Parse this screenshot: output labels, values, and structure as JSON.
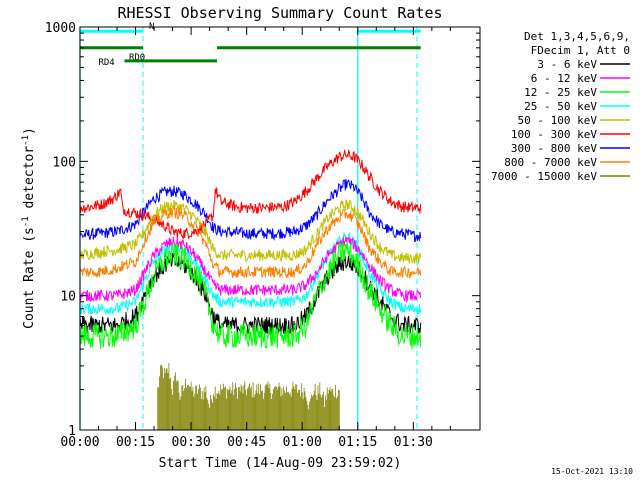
{
  "chart_data": {
    "type": "line",
    "title": "RHESSI Observing Summary Count Rates",
    "xlabel": "Start Time (14-Aug-09 23:59:02)",
    "ylabel": "Count Rate (s^-1 detector^-1)",
    "yscale": "log",
    "ylim": [
      1,
      1000
    ],
    "xlim": [
      0,
      108
    ],
    "x_unit": "minutes from 00:00",
    "x_ticks": [
      {
        "at": 0,
        "label": "00:00"
      },
      {
        "at": 15,
        "label": "00:15"
      },
      {
        "at": 30,
        "label": "00:30"
      },
      {
        "at": 45,
        "label": "00:45"
      },
      {
        "at": 60,
        "label": "01:00"
      },
      {
        "at": 75,
        "label": "01:15"
      },
      {
        "at": 90,
        "label": "01:30"
      }
    ],
    "y_ticks": [
      {
        "at": 1,
        "label": "1"
      },
      {
        "at": 10,
        "label": "10"
      },
      {
        "at": 100,
        "label": "100"
      },
      {
        "at": 1000,
        "label": "1000"
      }
    ],
    "grid": false,
    "legend_position": "right",
    "legend_header": [
      "Det 1,3,4,5,6,9,",
      "FDecim 1, Att 0"
    ],
    "footer_timestamp": "15-Oct-2021 13:10",
    "day_night_boundaries": {
      "color": "#00ffff",
      "solid": [
        0,
        75
      ],
      "dashed": [
        17,
        91
      ]
    },
    "flags": [
      {
        "name": "N",
        "color": "#00ffff",
        "y": 930,
        "segments": [
          [
            0,
            17
          ],
          [
            75,
            92
          ]
        ]
      },
      {
        "name": "RD0",
        "color": "#008000",
        "y": 700,
        "segments": [
          [
            0,
            17
          ],
          [
            37,
            92
          ]
        ]
      },
      {
        "name": "RD4",
        "color": "#008000",
        "y": 560,
        "segments": [
          [
            12,
            37
          ]
        ]
      }
    ],
    "series": [
      {
        "name": "3 - 6 keV",
        "color": "#000000",
        "x": [
          0,
          5,
          10,
          15,
          18,
          20,
          23,
          25,
          28,
          31,
          34,
          36,
          38,
          45,
          52,
          58,
          61,
          64,
          67,
          70,
          72,
          74,
          76,
          78,
          81,
          84,
          87,
          90,
          92
        ],
        "y": [
          6,
          6,
          6,
          7,
          11,
          14,
          17,
          18,
          17,
          14,
          10,
          7,
          6,
          6,
          6,
          6,
          7,
          10,
          14,
          17,
          18,
          17,
          15,
          12,
          9,
          7,
          6,
          6,
          6
        ]
      },
      {
        "name": "6 - 12 keV",
        "color": "#ff00ff",
        "x": [
          0,
          5,
          10,
          15,
          18,
          20,
          23,
          25,
          28,
          31,
          34,
          36,
          38,
          45,
          52,
          58,
          61,
          64,
          67,
          70,
          72,
          74,
          76,
          78,
          81,
          84,
          87,
          90,
          92
        ],
        "y": [
          10,
          10,
          10,
          11,
          16,
          20,
          24,
          25,
          24,
          20,
          15,
          12,
          11,
          11,
          11,
          11,
          12,
          15,
          20,
          24,
          26,
          24,
          21,
          17,
          13,
          11,
          10,
          10,
          10
        ]
      },
      {
        "name": "12 - 25 keV",
        "color": "#00ff00",
        "x": [
          0,
          5,
          10,
          15,
          18,
          20,
          23,
          25,
          28,
          31,
          34,
          36,
          38,
          45,
          52,
          58,
          61,
          64,
          67,
          70,
          72,
          74,
          76,
          78,
          81,
          84,
          87,
          90,
          92
        ],
        "y": [
          5,
          5,
          5,
          6,
          10,
          14,
          19,
          20,
          19,
          15,
          10,
          6,
          5,
          5,
          5,
          5,
          6,
          10,
          15,
          20,
          22,
          19,
          15,
          11,
          8,
          6,
          5,
          5,
          5
        ]
      },
      {
        "name": "25 - 50 keV",
        "color": "#00ffff",
        "x": [
          0,
          5,
          10,
          15,
          18,
          20,
          23,
          25,
          28,
          31,
          34,
          36,
          38,
          45,
          52,
          58,
          61,
          64,
          67,
          70,
          72,
          74,
          76,
          78,
          81,
          84,
          87,
          90,
          92
        ],
        "y": [
          8,
          8,
          8,
          9,
          14,
          18,
          22,
          23,
          22,
          18,
          13,
          10,
          9,
          9,
          9,
          9,
          10,
          14,
          20,
          25,
          28,
          25,
          20,
          15,
          11,
          9,
          8,
          8,
          8
        ]
      },
      {
        "name": "50 - 100 keV",
        "color": "#c0c000",
        "x": [
          0,
          5,
          10,
          15,
          18,
          20,
          23,
          25,
          28,
          31,
          34,
          36,
          38,
          45,
          52,
          58,
          61,
          64,
          67,
          70,
          72,
          74,
          76,
          78,
          81,
          84,
          87,
          90,
          92
        ],
        "y": [
          20,
          21,
          22,
          24,
          32,
          40,
          46,
          47,
          45,
          38,
          29,
          22,
          20,
          20,
          20,
          20,
          22,
          29,
          38,
          45,
          48,
          45,
          38,
          30,
          23,
          20,
          19,
          19,
          19
        ]
      },
      {
        "name": "100 - 300 keV",
        "color": "#ff0000",
        "x": [
          0,
          3,
          6,
          9,
          11,
          11.5,
          14,
          17,
          20,
          23,
          25,
          28,
          31,
          34,
          36,
          36.5,
          38,
          42,
          45,
          50,
          55,
          58,
          61,
          64,
          67,
          70,
          72,
          74,
          76,
          78,
          81,
          84,
          87,
          90,
          92
        ],
        "y": [
          45,
          46,
          48,
          53,
          60,
          44,
          42,
          40,
          37,
          33,
          30,
          29,
          30,
          34,
          40,
          62,
          50,
          46,
          45,
          45,
          46,
          50,
          60,
          75,
          93,
          108,
          112,
          108,
          95,
          78,
          60,
          50,
          46,
          45,
          45
        ]
      },
      {
        "name": "300 - 800 keV",
        "color": "#0000ff",
        "x": [
          0,
          5,
          10,
          15,
          18,
          20,
          23,
          25,
          28,
          31,
          34,
          36,
          38,
          45,
          52,
          58,
          61,
          64,
          67,
          70,
          72,
          74,
          76,
          78,
          81,
          84,
          87,
          90,
          92
        ],
        "y": [
          28,
          29,
          30,
          34,
          45,
          53,
          59,
          60,
          57,
          49,
          40,
          32,
          30,
          29,
          29,
          30,
          33,
          40,
          52,
          62,
          68,
          64,
          54,
          42,
          34,
          30,
          29,
          28,
          28
        ]
      },
      {
        "name": "800 - 7000 keV",
        "color": "#ff8000",
        "x": [
          0,
          5,
          10,
          15,
          18,
          20,
          23,
          25,
          28,
          31,
          34,
          36,
          38,
          45,
          52,
          58,
          61,
          64,
          67,
          70,
          72,
          74,
          76,
          78,
          81,
          84,
          87,
          90,
          92
        ],
        "y": [
          15,
          15,
          16,
          18,
          28,
          35,
          41,
          42,
          40,
          33,
          24,
          17,
          15,
          15,
          15,
          15,
          17,
          24,
          32,
          38,
          41,
          38,
          31,
          23,
          18,
          15,
          15,
          15,
          15
        ]
      },
      {
        "name": "7000 - 15000 keV",
        "color": "#808000",
        "x": [
          21,
          22,
          23,
          24,
          25,
          26,
          27,
          28,
          29,
          30,
          31,
          32,
          33,
          34,
          35,
          36,
          61,
          62,
          63,
          64,
          65,
          66,
          67,
          68,
          69,
          70
        ],
        "y": [
          2.0,
          2.9,
          2.5,
          2.9,
          2.0,
          2.6,
          1.8,
          2.0,
          2.4,
          2.0,
          1.9,
          2.0,
          1.9,
          2.0,
          1.5,
          2.0,
          2.0,
          1.5,
          2.0,
          1.9,
          2.0,
          1.6,
          2.0,
          1.9,
          2.0,
          2.0
        ]
      }
    ]
  }
}
